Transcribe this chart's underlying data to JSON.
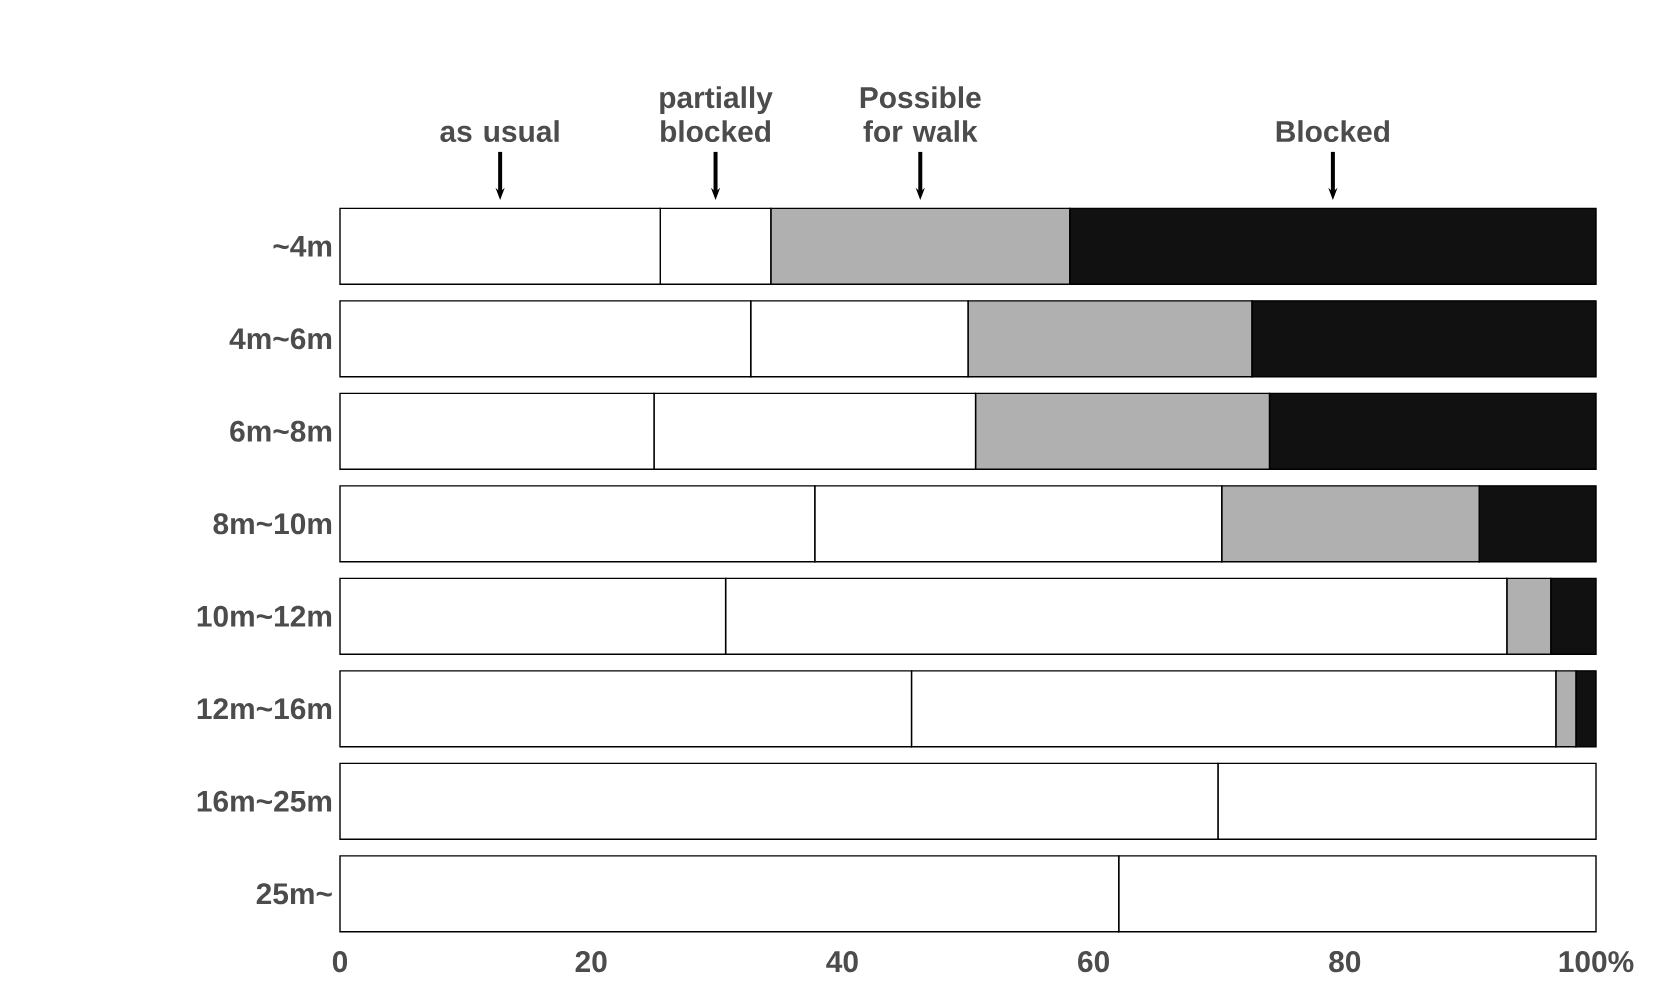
{
  "chart_data": {
    "type": "bar",
    "orientation": "horizontal",
    "stacked": true,
    "grid": false,
    "categories": [
      "~4m",
      "4m~6m",
      "6m~8m",
      "8m~10m",
      "10m~12m",
      "12m~16m",
      "16m~25m",
      "25m~"
    ],
    "xlim": [
      0,
      100
    ],
    "xticks": [
      0,
      20,
      40,
      60,
      80,
      {
        "value": 100,
        "label": "100%"
      }
    ],
    "series": [
      {
        "name": "as usual",
        "color": "#ffffff",
        "values": [
          25.5,
          32.7,
          25,
          37.8,
          30.7,
          45.5,
          69.9,
          62
        ]
      },
      {
        "name": "partially blocked",
        "color": "#ffffff",
        "values": [
          8.8,
          17.3,
          25.6,
          32.4,
          62.2,
          51.3,
          30.1,
          38
        ]
      },
      {
        "name": "Possible for walk",
        "color": "#b0b0b0",
        "values": [
          23.8,
          22.6,
          23.4,
          20.5,
          3.5,
          1.6,
          0,
          0
        ]
      },
      {
        "name": "Blocked",
        "color": "#111111",
        "values": [
          41.9,
          27.4,
          26,
          9.3,
          3.6,
          1.6,
          0,
          0
        ]
      }
    ]
  }
}
